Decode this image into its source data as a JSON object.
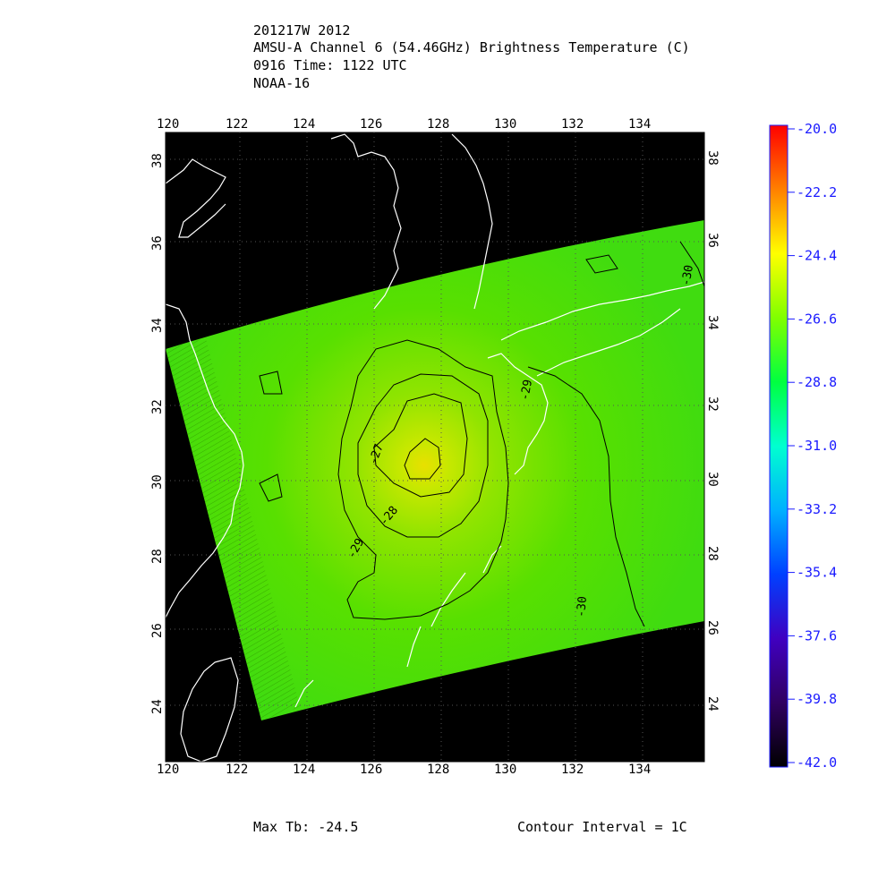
{
  "header": {
    "line1": "201217W 2012",
    "line2": "AMSU-A Channel 6 (54.46GHz) Brightness Temperature (C)",
    "line3": "0916 Time: 1122 UTC",
    "line4": "NOAA-16"
  },
  "axes": {
    "lon_ticks": [
      "120",
      "122",
      "124",
      "126",
      "128",
      "130",
      "132",
      "134"
    ],
    "lat_ticks": [
      "24",
      "26",
      "28",
      "30",
      "32",
      "34",
      "36",
      "38"
    ]
  },
  "colorbar": {
    "labels": [
      "-20.0",
      "-22.2",
      "-24.4",
      "-26.6",
      "-28.8",
      "-31.0",
      "-33.2",
      "-35.4",
      "-37.6",
      "-39.8",
      "-42.0"
    ],
    "colors": [
      "#ff0000",
      "#ff8000",
      "#ffff00",
      "#80ff00",
      "#00ff40",
      "#00ffd0",
      "#00b0ff",
      "#0040ff",
      "#4000c0",
      "#300060",
      "#000000"
    ]
  },
  "contour_labels": [
    "-27",
    "-28",
    "-29",
    "-29",
    "-30",
    "-30"
  ],
  "footer": {
    "max_tb": "Max Tb: -24.5",
    "contour_interval": "Contour Interval = 1C"
  }
}
